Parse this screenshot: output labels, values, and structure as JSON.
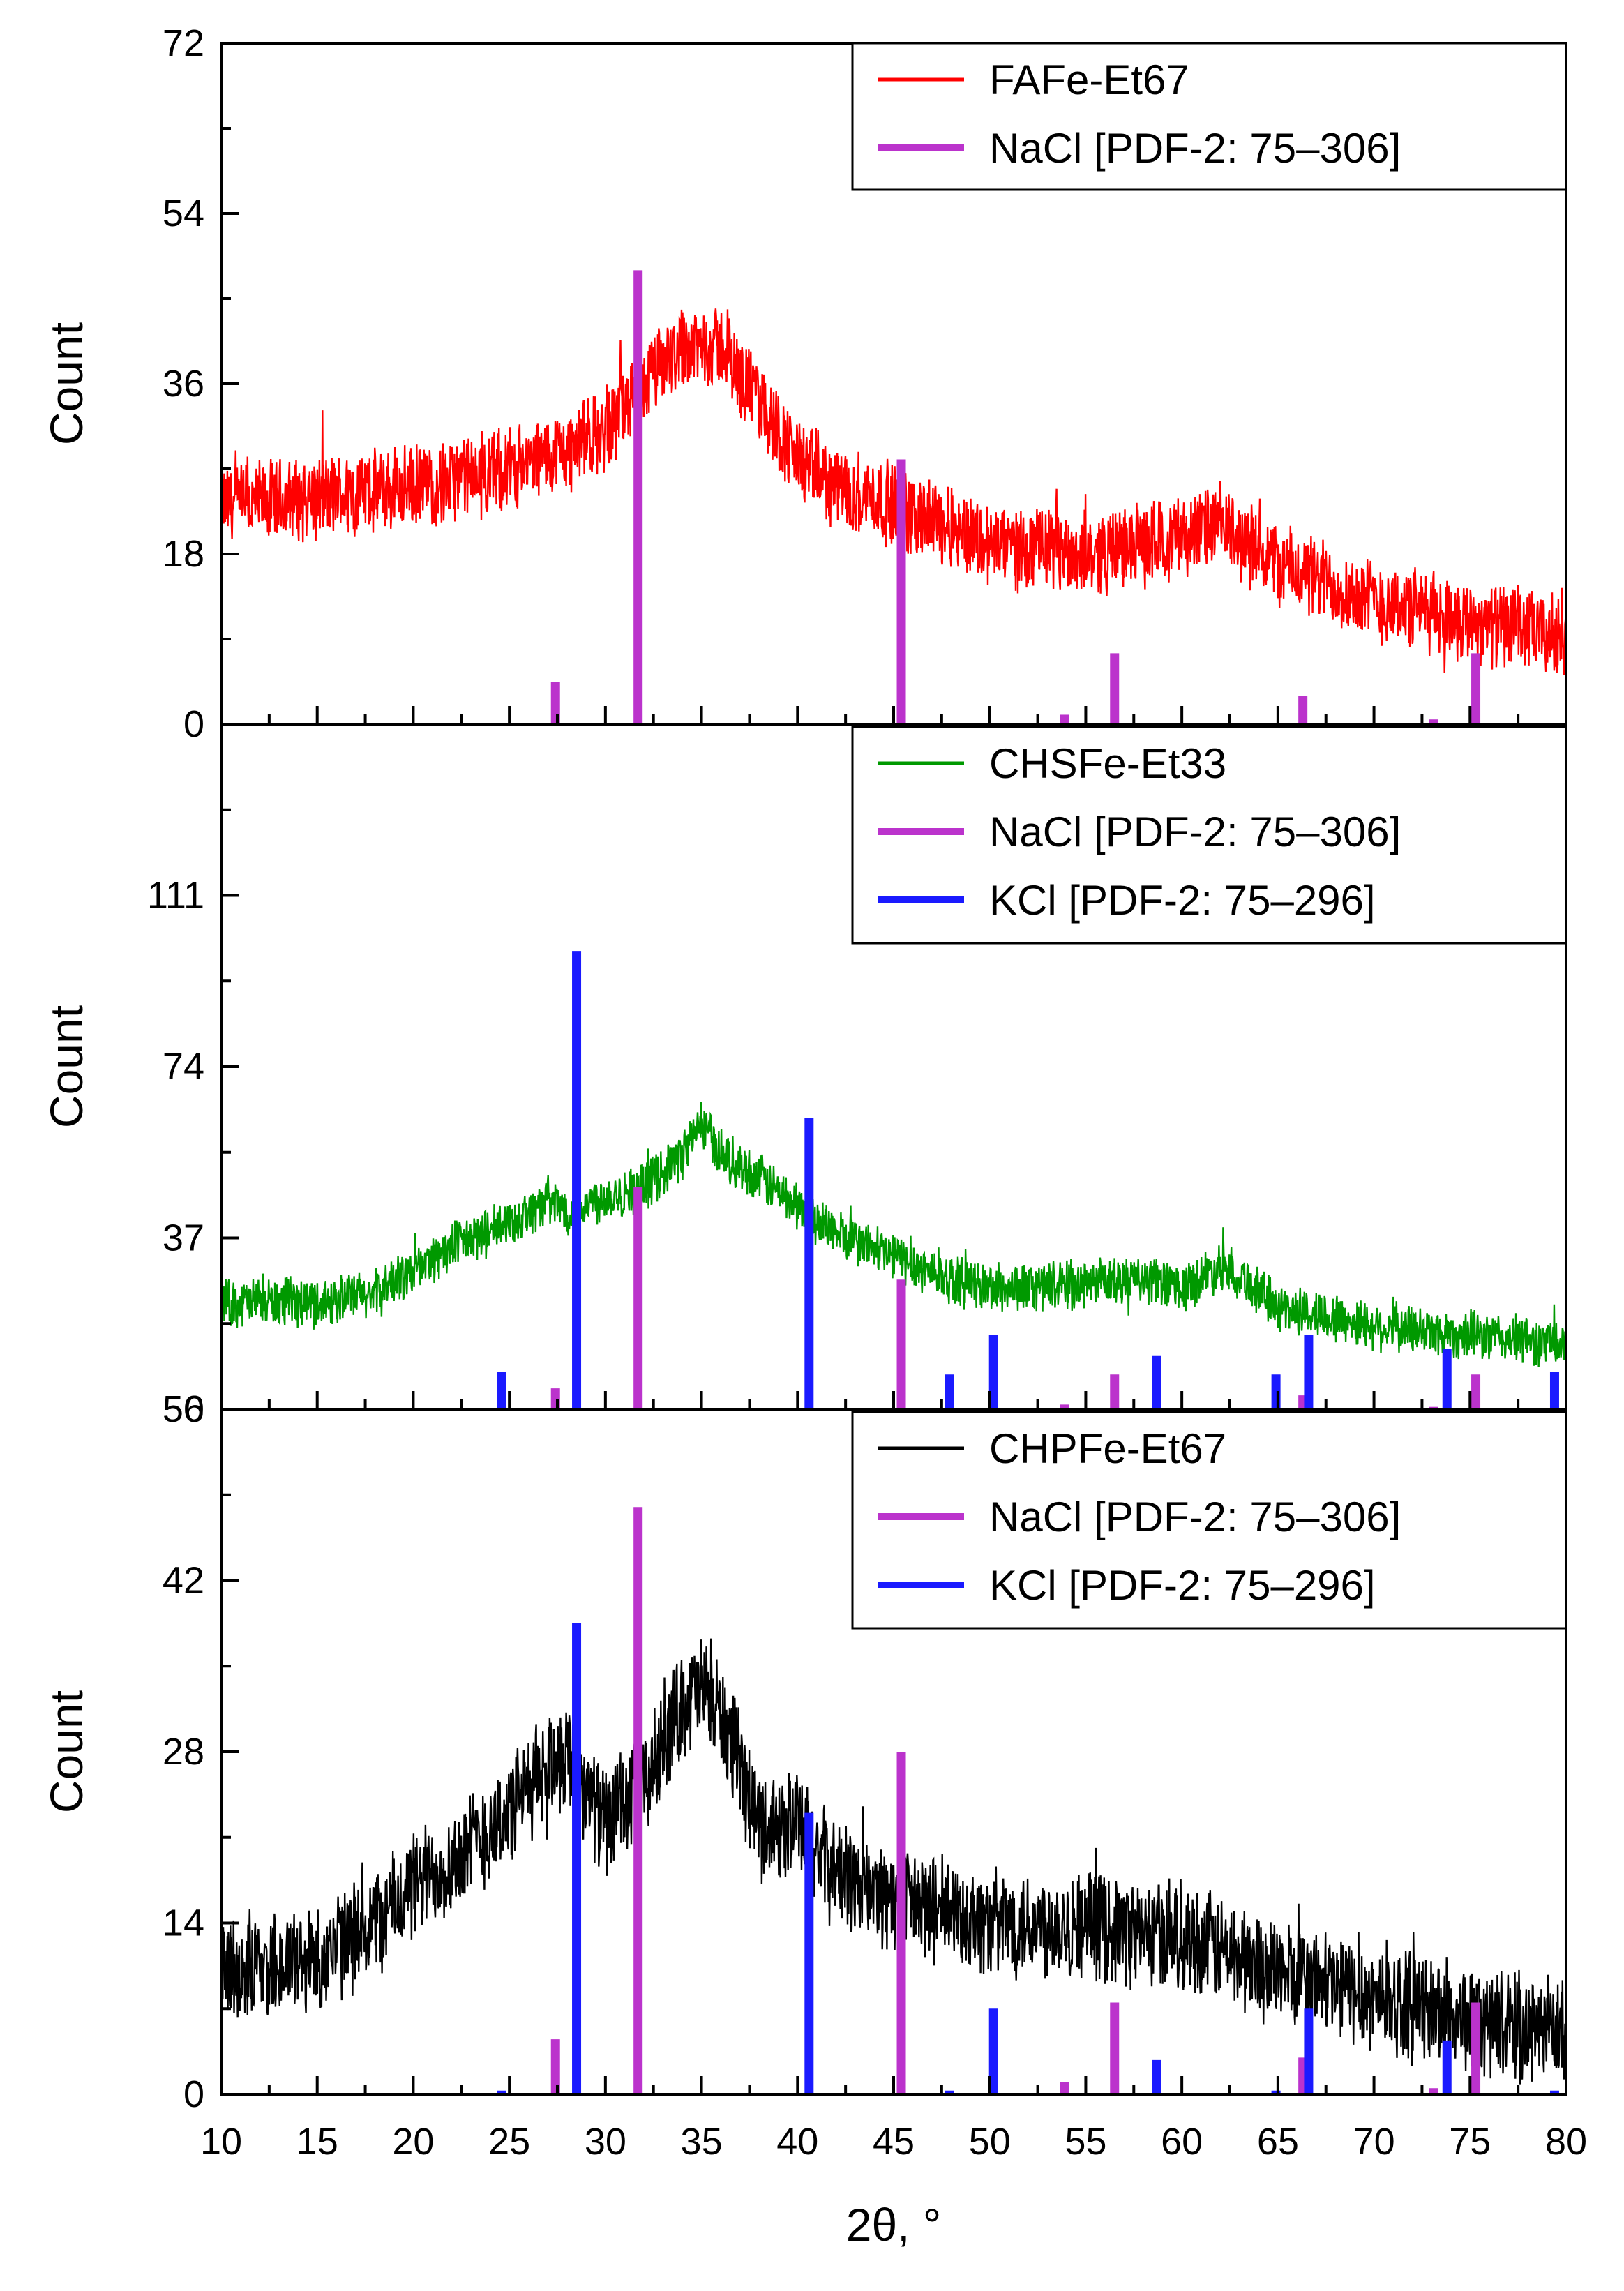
{
  "chart_data": [
    {
      "type": "line",
      "title": "",
      "xlabel": "2θ, °",
      "ylabel": "Count",
      "xlim": [
        10,
        80
      ],
      "ylim": [
        0,
        72
      ],
      "yticks": [
        0,
        18,
        36,
        54,
        72
      ],
      "series": [
        {
          "name": "FAFe-Et67",
          "color": "#ff0000",
          "x": [
            10,
            15,
            20,
            25,
            28,
            30,
            32,
            34,
            36,
            38,
            40,
            42,
            44,
            46,
            48,
            50,
            55,
            58,
            62,
            65,
            70,
            75,
            80
          ],
          "y": [
            23,
            24,
            25,
            27,
            29,
            31,
            36,
            40,
            40,
            34,
            28,
            25,
            24,
            22,
            21,
            19,
            18,
            19,
            21,
            17,
            13,
            11,
            9
          ],
          "noise": 5
        }
      ],
      "reference_peaks": [
        {
          "name": "NaCl [PDF-2: 75–306]",
          "color": "#bb33cc",
          "x": [
            27.4,
            31.7,
            45.4,
            53.9,
            56.5,
            66.3,
            73.1,
            75.3
          ],
          "y": [
            4.5,
            48,
            28,
            1,
            7.5,
            3,
            0.5,
            7.5
          ]
        }
      ]
    },
    {
      "type": "line",
      "title": "",
      "xlabel": "2θ, °",
      "ylabel": "Count",
      "xlim": [
        10,
        80
      ],
      "ylim": [
        0,
        148
      ],
      "yticks": [
        0,
        37,
        74,
        111
      ],
      "series": [
        {
          "name": "CHSFe-Et33",
          "color": "#009900",
          "x": [
            10,
            15,
            18,
            20,
            22,
            25,
            27,
            28,
            30,
            32,
            34,
            35,
            36,
            38,
            40,
            42,
            45,
            48,
            50,
            55,
            58,
            60,
            62,
            63,
            65,
            70,
            75,
            80
          ],
          "y": [
            23,
            23,
            25,
            30,
            35,
            40,
            45,
            43,
            46,
            48,
            55,
            62,
            55,
            50,
            44,
            38,
            33,
            28,
            26,
            27,
            28,
            26,
            31,
            29,
            22,
            18,
            16,
            14
          ],
          "noise": 6
        }
      ],
      "reference_peaks": [
        {
          "name": "NaCl [PDF-2: 75–306]",
          "color": "#bb33cc",
          "x": [
            27.4,
            31.7,
            45.4,
            53.9,
            56.5,
            66.3,
            73.1,
            75.3
          ],
          "y": [
            4.5,
            48,
            28,
            1,
            7.5,
            3,
            0.5,
            7.5
          ]
        },
        {
          "name": "KCl [PDF-2: 75–296]",
          "color": "#1a1aff",
          "x": [
            24.6,
            28.5,
            40.6,
            47.9,
            50.2,
            58.7,
            64.9,
            66.6,
            73.8,
            79.4
          ],
          "y": [
            8,
            99,
            63,
            7.5,
            16,
            11.5,
            7.5,
            16,
            13,
            8
          ]
        }
      ]
    },
    {
      "type": "line",
      "title": "",
      "xlabel": "2θ, °",
      "ylabel": "Count",
      "xlim": [
        10,
        80
      ],
      "ylim": [
        0,
        56
      ],
      "yticks": [
        0,
        14,
        28,
        42,
        56
      ],
      "xticks": [
        10,
        15,
        20,
        25,
        30,
        35,
        40,
        45,
        50,
        55,
        60,
        65,
        70,
        75,
        80
      ],
      "series": [
        {
          "name": "CHPFe-Et67",
          "color": "#000000",
          "x": [
            10,
            15,
            18,
            20,
            22,
            25,
            27,
            28,
            29,
            30,
            32,
            34,
            35,
            36,
            38,
            40,
            42,
            45,
            50,
            55,
            58,
            60,
            65,
            70,
            75,
            80
          ],
          "y": [
            10,
            11,
            14,
            17,
            19,
            23,
            27,
            28,
            25,
            22,
            25,
            32,
            33,
            31,
            22,
            22,
            18,
            16,
            14,
            14,
            13,
            13,
            10,
            8,
            6,
            5
          ],
          "noise": 5
        }
      ],
      "reference_peaks": [
        {
          "name": "NaCl [PDF-2: 75–306]",
          "color": "#bb33cc",
          "x": [
            27.4,
            31.7,
            45.4,
            53.9,
            56.5,
            66.3,
            73.1,
            75.3
          ],
          "y": [
            4.5,
            48,
            28,
            1,
            7.5,
            3,
            0.5,
            7.5
          ]
        },
        {
          "name": "KCl [PDF-2: 75–296]",
          "color": "#1a1aff",
          "x": [
            24.6,
            28.5,
            40.6,
            47.9,
            50.2,
            58.7,
            64.9,
            66.6,
            73.8,
            79.4
          ],
          "y": [
            0.3,
            38.5,
            23,
            0.3,
            7,
            2.8,
            0.3,
            7,
            4.4,
            0.3
          ]
        }
      ]
    }
  ]
}
